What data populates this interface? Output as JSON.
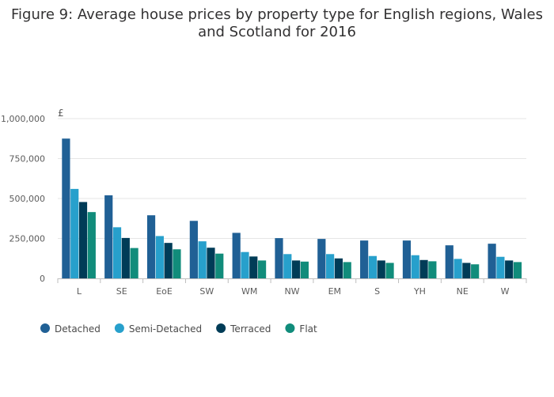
{
  "title_line1": "Figure 9: Average house prices by property type for English regions, Wales",
  "title_line2": "and Scotland for 2016",
  "chart_data": {
    "type": "bar",
    "title": "Figure 9: Average house prices by property type for English regions, Wales and Scotland for 2016",
    "ylabel": "£",
    "xlabel": "",
    "ylim": [
      0,
      1000000
    ],
    "yticks": [
      0,
      250000,
      500000,
      750000,
      1000000
    ],
    "ytick_labels": [
      "0",
      "250,000",
      "500,000",
      "750,000",
      "1,000,000"
    ],
    "categories": [
      "L",
      "SE",
      "EoE",
      "SW",
      "WM",
      "NW",
      "EM",
      "S",
      "YH",
      "NE",
      "W"
    ],
    "series": [
      {
        "name": "Detached",
        "color": "#206095",
        "values": [
          875000,
          520000,
          395000,
          360000,
          285000,
          252000,
          247000,
          237000,
          237000,
          207000,
          217000
        ]
      },
      {
        "name": "Semi-Detached",
        "color": "#27a0cc",
        "values": [
          560000,
          320000,
          265000,
          232000,
          165000,
          152000,
          152000,
          140000,
          145000,
          122000,
          135000
        ]
      },
      {
        "name": "Terraced",
        "color": "#003c57",
        "values": [
          478000,
          253000,
          222000,
          192000,
          137000,
          112000,
          125000,
          112000,
          115000,
          97000,
          112000
        ]
      },
      {
        "name": "Flat",
        "color": "#118c7b",
        "values": [
          415000,
          190000,
          182000,
          155000,
          112000,
          105000,
          102000,
          97000,
          107000,
          88000,
          102000
        ]
      }
    ],
    "grid": true,
    "legend_position": "bottom-left"
  }
}
